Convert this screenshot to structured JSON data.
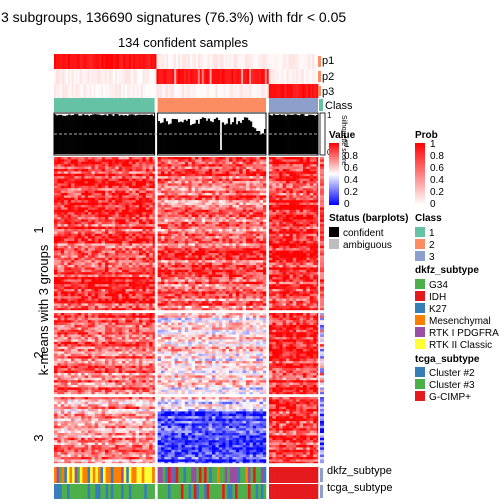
{
  "chart_data": {
    "type": "heatmap",
    "title": "3 subgroups, 136690 signatures (76.3%) with fdr < 0.05",
    "subtitle": "134 confident samples",
    "ylabel": "k-means with 3 groups",
    "row_groups": [
      "1",
      "2",
      "3"
    ],
    "row_group_fractions": [
      0.51,
      0.27,
      0.22
    ],
    "column_groups": [
      "1",
      "2",
      "3"
    ],
    "column_group_fractions": [
      0.39,
      0.42,
      0.19
    ],
    "top_annotations": [
      "p1",
      "p2",
      "p3",
      "Class"
    ],
    "silhouette": {
      "label": "Silhouette score",
      "axis_ticks": [
        "1",
        "0"
      ]
    },
    "bottom_annotations": [
      "dkfz_subtype",
      "tcga_subtype"
    ],
    "legends": {
      "value": {
        "title": "Value",
        "ticks": [
          "1",
          "0.8",
          "0.6",
          "0.4",
          "0.2",
          "0"
        ],
        "colors": [
          "#ff0000",
          "#ffffff",
          "#0000ff"
        ]
      },
      "prob": {
        "title": "Prob",
        "ticks": [
          "1",
          "0.8",
          "0.6",
          "0.4",
          "0.2",
          "0"
        ],
        "colors": [
          "#ff0000",
          "#ffffff"
        ]
      },
      "status": {
        "title": "Status (barplots)",
        "items": [
          {
            "label": "confident",
            "color": "#000000"
          },
          {
            "label": "ambiguous",
            "color": "#bebebe"
          }
        ]
      },
      "class": {
        "title": "Class",
        "items": [
          {
            "label": "1",
            "color": "#66c2a5"
          },
          {
            "label": "2",
            "color": "#fc8d62"
          },
          {
            "label": "3",
            "color": "#8da0cb"
          }
        ]
      },
      "dkfz_subtype": {
        "title": "dkfz_subtype",
        "items": [
          {
            "label": "G34",
            "color": "#4daf4a"
          },
          {
            "label": "IDH",
            "color": "#e41a1c"
          },
          {
            "label": "K27",
            "color": "#377eb8"
          },
          {
            "label": "Mesenchymal",
            "color": "#ff7f00"
          },
          {
            "label": "RTK I PDGFRA",
            "color": "#984ea3"
          },
          {
            "label": "RTK II Classic",
            "color": "#ffff33"
          }
        ]
      },
      "tcga_subtype": {
        "title": "tcga_subtype",
        "items": [
          {
            "label": "Cluster #2",
            "color": "#377eb8"
          },
          {
            "label": "Cluster #3",
            "color": "#4daf4a"
          },
          {
            "label": "G-CIMP+",
            "color": "#e41a1c"
          }
        ]
      }
    }
  }
}
